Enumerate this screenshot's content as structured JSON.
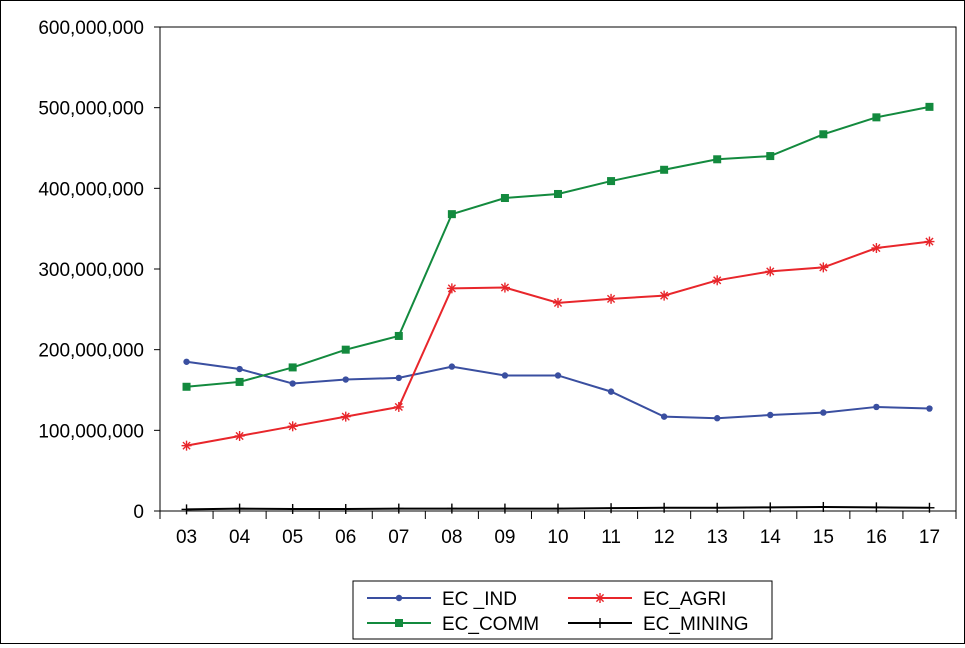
{
  "chart_data": {
    "type": "line",
    "title": "",
    "xlabel": "",
    "ylabel": "",
    "categories": [
      "03",
      "04",
      "05",
      "06",
      "07",
      "08",
      "09",
      "10",
      "11",
      "12",
      "13",
      "14",
      "15",
      "16",
      "17"
    ],
    "ylim": [
      0,
      600000000
    ],
    "yticks": [
      0,
      100000000,
      200000000,
      300000000,
      400000000,
      500000000,
      600000000
    ],
    "ytick_labels": [
      "0",
      "100,000,000",
      "200,000,000",
      "300,000,000",
      "400,000,000",
      "500,000,000",
      "600,000,000"
    ],
    "grid": false,
    "legend_position": "bottom",
    "series": [
      {
        "name": "EC _IND",
        "color": "#3a4fa0",
        "marker": "circle",
        "values": [
          185000000,
          176000000,
          158000000,
          163000000,
          165000000,
          179000000,
          168000000,
          168000000,
          148000000,
          117000000,
          115000000,
          119000000,
          122000000,
          129000000,
          127000000
        ]
      },
      {
        "name": "EC_AGRI",
        "color": "#e8262b",
        "marker": "star",
        "values": [
          81000000,
          93000000,
          105000000,
          117000000,
          129000000,
          276000000,
          277000000,
          258000000,
          263000000,
          267000000,
          286000000,
          297000000,
          302000000,
          326000000,
          334000000
        ]
      },
      {
        "name": "EC_COMM",
        "color": "#138a3e",
        "marker": "square",
        "values": [
          154000000,
          160000000,
          178000000,
          200000000,
          217000000,
          368000000,
          388000000,
          393000000,
          409000000,
          423000000,
          436000000,
          440000000,
          467000000,
          488000000,
          501000000
        ]
      },
      {
        "name": "EC_MINING",
        "color": "#000000",
        "marker": "plus",
        "values": [
          2000000,
          3000000,
          2500000,
          2500000,
          3000000,
          3000000,
          3000000,
          3000000,
          3500000,
          4000000,
          4000000,
          4500000,
          5000000,
          4500000,
          4000000
        ]
      }
    ]
  }
}
